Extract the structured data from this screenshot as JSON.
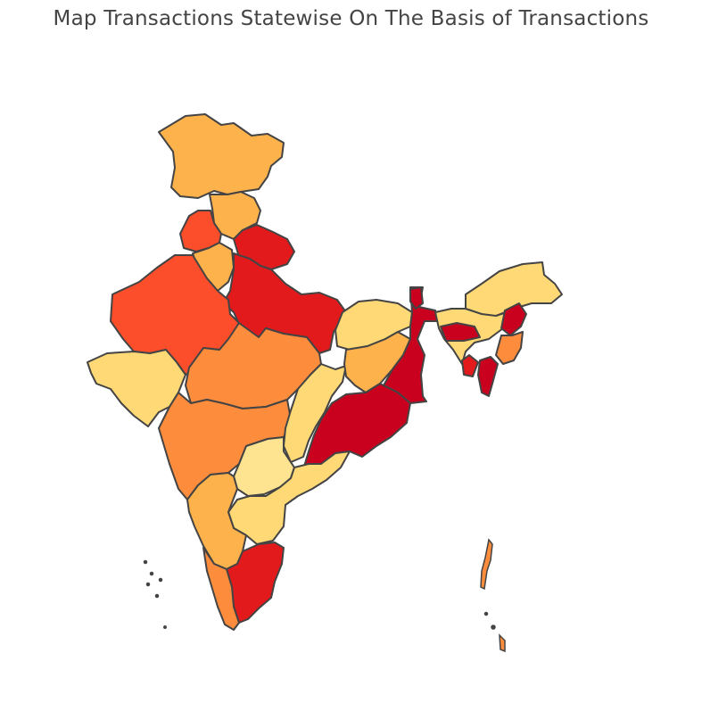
{
  "title": "Map Transactions Statewise On The Basis of Transactions",
  "colors": {
    "level_1": "#fee391",
    "level_2": "#fed976",
    "level_3": "#feb24c",
    "level_4": "#fd8d3c",
    "level_5": "#fc4e2a",
    "level_6": "#e31a1c",
    "level_7": "#c9001e",
    "border": "#444444"
  },
  "map_data": {
    "type": "choropleth",
    "region": "India",
    "regions": [
      {
        "name": "Jammu and Kashmir",
        "level": 3
      },
      {
        "name": "Himachal Pradesh",
        "level": 3
      },
      {
        "name": "Punjab",
        "level": 5
      },
      {
        "name": "Haryana",
        "level": 3
      },
      {
        "name": "Uttarakhand",
        "level": 6
      },
      {
        "name": "Uttar Pradesh",
        "level": 6
      },
      {
        "name": "Rajasthan",
        "level": 5
      },
      {
        "name": "Gujarat",
        "level": 2
      },
      {
        "name": "Madhya Pradesh",
        "level": 4
      },
      {
        "name": "Maharashtra",
        "level": 4
      },
      {
        "name": "Chhattisgarh",
        "level": 2
      },
      {
        "name": "Bihar",
        "level": 2
      },
      {
        "name": "Jharkhand",
        "level": 3
      },
      {
        "name": "West Bengal",
        "level": 7
      },
      {
        "name": "Odisha",
        "level": 7
      },
      {
        "name": "Telangana",
        "level": 1
      },
      {
        "name": "Andhra Pradesh",
        "level": 2
      },
      {
        "name": "Karnataka",
        "level": 3
      },
      {
        "name": "Tamil Nadu",
        "level": 6
      },
      {
        "name": "Kerala",
        "level": 4
      },
      {
        "name": "Sikkim",
        "level": 7
      },
      {
        "name": "Arunachal Pradesh",
        "level": 2
      },
      {
        "name": "Assam",
        "level": 2
      },
      {
        "name": "Meghalaya",
        "level": 7
      },
      {
        "name": "Nagaland",
        "level": 7
      },
      {
        "name": "Manipur",
        "level": 4
      },
      {
        "name": "Tripura",
        "level": 6
      },
      {
        "name": "Mizoram",
        "level": 7
      }
    ]
  }
}
